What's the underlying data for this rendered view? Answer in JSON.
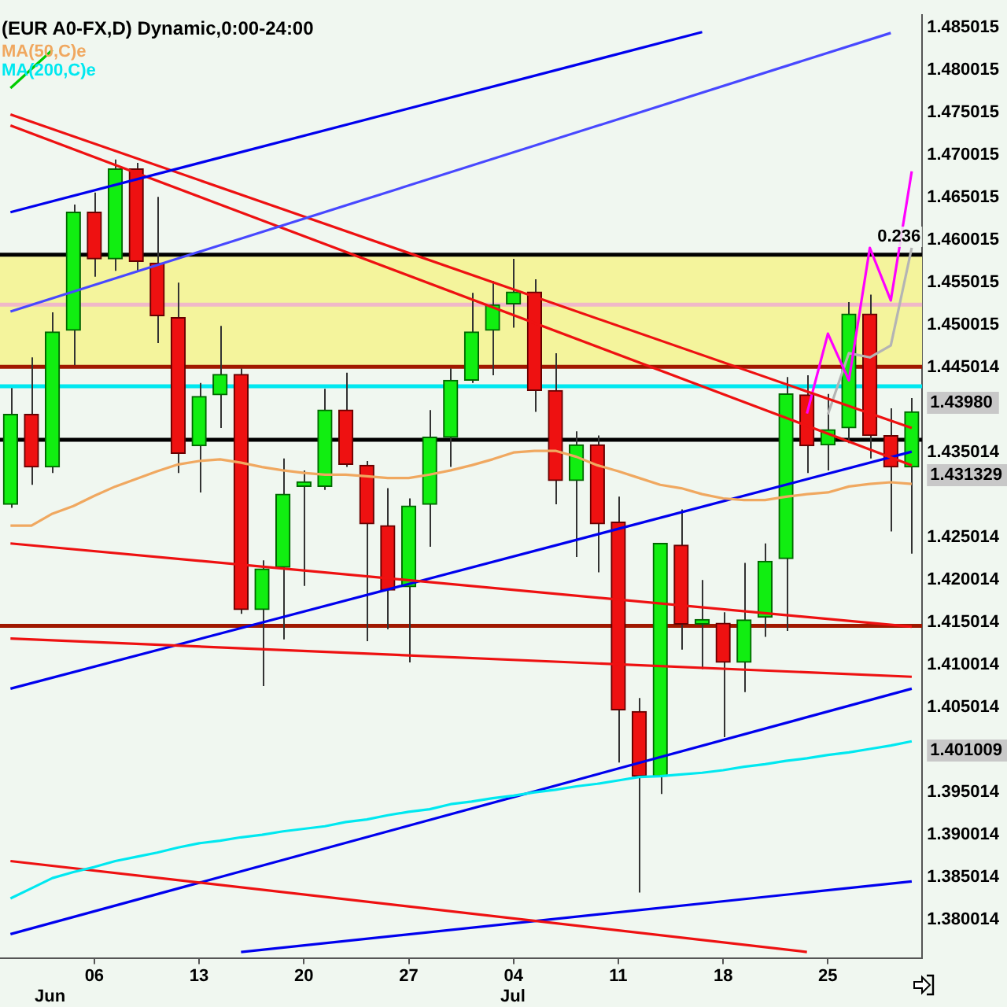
{
  "chart_data": {
    "type": "candlestick",
    "title": "(EUR A0-FX,D) Dynamic,0:00-24:00",
    "categories": [
      null,
      null,
      null,
      null,
      "06",
      null,
      null,
      null,
      null,
      "13",
      null,
      null,
      null,
      null,
      "20",
      null,
      null,
      null,
      null,
      "27",
      null,
      null,
      null,
      null,
      "04",
      null,
      null,
      null,
      null,
      "11",
      null,
      null,
      null,
      null,
      "18",
      null,
      null,
      null,
      null,
      "25",
      null,
      null,
      null,
      null
    ],
    "ohlc": [
      [
        1.4289,
        1.4426,
        1.4285,
        1.4395
      ],
      [
        1.4395,
        1.4462,
        1.4312,
        1.4333
      ],
      [
        1.4333,
        1.4515,
        1.4326,
        1.4492
      ],
      [
        1.4494,
        1.4642,
        1.4453,
        1.4633
      ],
      [
        1.4633,
        1.4656,
        1.4557,
        1.4578
      ],
      [
        1.4578,
        1.4695,
        1.4564,
        1.4684
      ],
      [
        1.4684,
        1.4691,
        1.4564,
        1.4575
      ],
      [
        1.4573,
        1.4651,
        1.4479,
        1.4511
      ],
      [
        1.4509,
        1.455,
        1.4326,
        1.4349
      ],
      [
        1.4358,
        1.4432,
        1.4303,
        1.4416
      ],
      [
        1.4418,
        1.4499,
        1.4379,
        1.4442
      ],
      [
        1.4442,
        1.4449,
        1.416,
        1.4165
      ],
      [
        1.4165,
        1.4223,
        1.4075,
        1.4213
      ],
      [
        1.4215,
        1.4343,
        1.413,
        1.4301
      ],
      [
        1.431,
        1.4329,
        1.4193,
        1.4312
      ],
      [
        1.431,
        1.4425,
        1.4306,
        1.44
      ],
      [
        1.44,
        1.4444,
        1.4333,
        1.4336
      ],
      [
        1.4335,
        1.434,
        1.4128,
        1.4266
      ],
      [
        1.4264,
        1.4308,
        1.4142,
        1.4188
      ],
      [
        1.4192,
        1.4296,
        1.4103,
        1.4287
      ],
      [
        1.4289,
        1.44,
        1.4239,
        1.4368
      ],
      [
        1.4368,
        1.4449,
        1.4333,
        1.4435
      ],
      [
        1.4435,
        1.4538,
        1.4432,
        1.4492
      ],
      [
        1.4494,
        1.4552,
        1.4441,
        1.4524
      ],
      [
        1.4525,
        1.4578,
        1.4497,
        1.4539
      ],
      [
        1.4539,
        1.4554,
        1.4398,
        1.4423
      ],
      [
        1.4423,
        1.4467,
        1.4289,
        1.4317
      ],
      [
        1.4317,
        1.4375,
        1.4227,
        1.4359
      ],
      [
        1.4359,
        1.437,
        1.4209,
        1.4266
      ],
      [
        1.4268,
        1.4298,
        1.3985,
        1.4047
      ],
      [
        1.4045,
        1.4061,
        1.3832,
        1.3969
      ],
      [
        1.3969,
        1.4243,
        1.3948,
        1.4243
      ],
      [
        1.4241,
        1.4283,
        1.4118,
        1.4148
      ],
      [
        1.4148,
        1.42,
        1.4095,
        1.4149
      ],
      [
        1.4149,
        1.4162,
        1.4015,
        1.4103
      ],
      [
        1.4103,
        1.422,
        1.4068,
        1.4153
      ],
      [
        1.4156,
        1.4243,
        1.4133,
        1.4222
      ],
      [
        1.4225,
        1.4439,
        1.414,
        1.4419
      ],
      [
        1.4418,
        1.4441,
        1.4326,
        1.4358
      ],
      [
        1.4359,
        1.4419,
        1.4329,
        1.4377
      ],
      [
        1.4379,
        1.4527,
        1.4361,
        1.4513
      ],
      [
        1.4513,
        1.4536,
        1.4343,
        1.437
      ],
      [
        1.437,
        1.4402,
        1.4257,
        1.4333
      ],
      [
        1.4333,
        1.4414,
        1.4231,
        1.4398
      ]
    ],
    "series": [
      {
        "type": "line",
        "name": "MA(50,C)e",
        "color": "#f0a860",
        "values": [
          1.4264,
          1.4264,
          1.4278,
          1.4287,
          1.4299,
          1.431,
          1.4319,
          1.4328,
          1.4336,
          1.434,
          1.4342,
          1.4338,
          1.4333,
          1.4329,
          1.4326,
          1.4324,
          1.4324,
          1.4322,
          1.432,
          1.432,
          1.4324,
          1.4329,
          1.4335,
          1.4342,
          1.435,
          1.4352,
          1.4352,
          1.4345,
          1.4335,
          1.4328,
          1.432,
          1.4312,
          1.4308,
          1.4301,
          1.4296,
          1.4294,
          1.4294,
          1.4298,
          1.4301,
          1.4303,
          1.431,
          1.4313,
          1.4315,
          1.4313
        ]
      },
      {
        "type": "line",
        "name": "MA(200,C)e",
        "color": "#00e8f0",
        "values": [
          1.3825,
          1.3837,
          1.3849,
          1.3856,
          1.3862,
          1.3869,
          1.3874,
          1.3879,
          1.3885,
          1.389,
          1.3893,
          1.3897,
          1.39,
          1.3904,
          1.3907,
          1.391,
          1.3915,
          1.3918,
          1.3923,
          1.3927,
          1.393,
          1.3936,
          1.3939,
          1.3943,
          1.3946,
          1.395,
          1.3953,
          1.3957,
          1.396,
          1.3964,
          1.3968,
          1.3969,
          1.3971,
          1.3973,
          1.3976,
          1.398,
          1.3983,
          1.3987,
          1.399,
          1.3994,
          1.3997,
          1.4001,
          1.4005,
          1.401
        ]
      },
      {
        "type": "line",
        "color": "#0000ee",
        "values": [
          1.4633,
          null,
          null,
          null,
          null,
          null,
          null,
          null,
          null,
          null,
          null,
          null,
          null,
          null,
          null,
          null,
          null,
          null,
          null,
          null,
          null,
          null,
          null,
          null,
          null,
          null,
          null,
          null,
          null,
          null,
          null,
          null,
          null,
          1.4845,
          null,
          null,
          null,
          null,
          null,
          null,
          null,
          null,
          null,
          null
        ]
      },
      {
        "type": "line",
        "color": "#4848ff",
        "values": [
          1.4516,
          null,
          null,
          null,
          null,
          null,
          null,
          null,
          null,
          null,
          null,
          null,
          null,
          null,
          null,
          null,
          null,
          null,
          null,
          null,
          null,
          null,
          null,
          null,
          null,
          null,
          null,
          null,
          null,
          null,
          null,
          null,
          null,
          null,
          null,
          null,
          null,
          null,
          null,
          null,
          null,
          null,
          1.4844,
          null
        ]
      },
      {
        "type": "line",
        "color": "#00cc00",
        "values": [
          1.4779,
          null,
          1.4824,
          null,
          null,
          null,
          null,
          null,
          null,
          null,
          null,
          null,
          null,
          null,
          null,
          null,
          null,
          null,
          null,
          null,
          null,
          null,
          null,
          null,
          null,
          null,
          null,
          null,
          null,
          null,
          null,
          null,
          null,
          null,
          null,
          null,
          null,
          null,
          null,
          null,
          null,
          null,
          null,
          null
        ]
      },
      {
        "type": "line",
        "color": "#ee1111",
        "values": [
          1.4748,
          null,
          null,
          null,
          null,
          null,
          null,
          null,
          null,
          null,
          null,
          null,
          null,
          null,
          null,
          null,
          null,
          null,
          null,
          null,
          null,
          null,
          null,
          null,
          null,
          null,
          null,
          null,
          null,
          null,
          null,
          null,
          null,
          null,
          null,
          null,
          null,
          null,
          null,
          null,
          null,
          null,
          null,
          1.4379
        ]
      },
      {
        "type": "line",
        "color": "#ee1111",
        "values": [
          1.4735,
          null,
          null,
          null,
          null,
          null,
          null,
          null,
          null,
          null,
          null,
          null,
          null,
          null,
          null,
          null,
          null,
          null,
          null,
          null,
          null,
          null,
          null,
          null,
          null,
          null,
          null,
          null,
          null,
          null,
          null,
          null,
          null,
          null,
          null,
          null,
          null,
          null,
          null,
          null,
          null,
          null,
          null,
          1.4335
        ]
      },
      {
        "type": "line",
        "color": "#ee1111",
        "values": [
          1.4243,
          null,
          null,
          null,
          null,
          null,
          null,
          null,
          null,
          null,
          null,
          null,
          null,
          null,
          null,
          null,
          null,
          null,
          null,
          null,
          null,
          null,
          null,
          null,
          null,
          null,
          null,
          null,
          null,
          null,
          null,
          null,
          null,
          null,
          null,
          null,
          null,
          null,
          null,
          null,
          null,
          null,
          null,
          1.4145
        ]
      },
      {
        "type": "line",
        "color": "#ee1111",
        "values": [
          1.4131,
          null,
          null,
          null,
          null,
          null,
          null,
          null,
          null,
          null,
          null,
          null,
          null,
          null,
          null,
          null,
          null,
          null,
          null,
          null,
          null,
          null,
          null,
          null,
          null,
          null,
          null,
          null,
          null,
          null,
          null,
          null,
          null,
          null,
          null,
          null,
          null,
          null,
          null,
          null,
          null,
          null,
          null,
          1.4086
        ]
      },
      {
        "type": "line",
        "color": "#ee1111",
        "values": [
          1.3869,
          null,
          null,
          null,
          null,
          null,
          null,
          null,
          null,
          null,
          null,
          null,
          null,
          null,
          null,
          null,
          null,
          null,
          null,
          null,
          null,
          null,
          null,
          null,
          null,
          null,
          null,
          null,
          null,
          null,
          null,
          null,
          null,
          null,
          null,
          null,
          null,
          null,
          1.3762,
          null,
          null,
          null,
          null,
          null
        ]
      },
      {
        "type": "line",
        "color": "#0000ee",
        "values": [
          1.4072,
          null,
          null,
          null,
          null,
          null,
          null,
          null,
          null,
          null,
          null,
          null,
          null,
          null,
          null,
          null,
          null,
          null,
          null,
          null,
          null,
          null,
          null,
          null,
          null,
          null,
          null,
          null,
          null,
          null,
          null,
          null,
          null,
          null,
          null,
          null,
          null,
          null,
          null,
          null,
          null,
          null,
          null,
          1.4351
        ]
      },
      {
        "type": "line",
        "color": "#0000ee",
        "values": [
          1.3783,
          null,
          null,
          null,
          null,
          null,
          null,
          null,
          null,
          null,
          null,
          null,
          null,
          null,
          null,
          null,
          null,
          null,
          null,
          null,
          null,
          null,
          null,
          null,
          null,
          null,
          null,
          null,
          null,
          null,
          null,
          null,
          null,
          null,
          null,
          null,
          null,
          null,
          null,
          null,
          null,
          null,
          null,
          1.4072
        ]
      },
      {
        "type": "line",
        "color": "#0000ee",
        "values": [
          null,
          null,
          null,
          null,
          null,
          null,
          null,
          null,
          null,
          null,
          null,
          1.3762,
          null,
          null,
          null,
          null,
          null,
          null,
          null,
          null,
          null,
          null,
          null,
          null,
          null,
          null,
          null,
          null,
          null,
          null,
          null,
          null,
          null,
          null,
          null,
          null,
          null,
          null,
          null,
          null,
          null,
          null,
          null,
          1.3845
        ]
      },
      {
        "type": "line",
        "color": "#ff00ff",
        "values": [
          null,
          null,
          null,
          null,
          null,
          null,
          null,
          null,
          null,
          null,
          null,
          null,
          null,
          null,
          null,
          null,
          null,
          null,
          null,
          null,
          null,
          null,
          null,
          null,
          null,
          null,
          null,
          null,
          null,
          null,
          null,
          null,
          null,
          null,
          null,
          null,
          null,
          null,
          1.4396,
          1.449,
          1.4435,
          1.4591,
          1.4529,
          1.4681
        ]
      },
      {
        "type": "line",
        "color": "#b4b4b4",
        "values": [
          null,
          null,
          null,
          null,
          null,
          null,
          null,
          null,
          null,
          null,
          null,
          null,
          null,
          null,
          null,
          null,
          null,
          null,
          null,
          null,
          null,
          null,
          null,
          null,
          null,
          null,
          null,
          null,
          null,
          null,
          null,
          null,
          null,
          null,
          null,
          null,
          null,
          null,
          null,
          1.4395,
          1.4467,
          1.4462,
          1.4476,
          1.4591
        ]
      }
    ],
    "bands": [
      {
        "axis": "y",
        "from": 1.4451,
        "to": 1.4583,
        "color": "#f4f49c"
      }
    ],
    "ref_lines": [
      {
        "axis": "y",
        "value": 1.4583,
        "color": "#000000"
      },
      {
        "axis": "y",
        "value": 1.4365,
        "color": "#000000"
      },
      {
        "axis": "y",
        "value": 1.4524,
        "color": "#f0b8c8"
      },
      {
        "axis": "y",
        "value": 1.4451,
        "color": "#a01800"
      },
      {
        "axis": "y",
        "value": 1.4428,
        "color": "#00e8f0"
      },
      {
        "axis": "y",
        "value": 1.4146,
        "color": "#a01800"
      }
    ],
    "annotations": [
      "1.43980",
      "1.431329",
      "1.401009",
      "Jun",
      "Jul",
      "0.236"
    ],
    "ylim": [
      1.3755,
      1.4865
    ],
    "yticks": [
      1.485015,
      1.480015,
      1.475015,
      1.470015,
      1.465015,
      1.460015,
      1.455015,
      1.450015,
      1.445014,
      1.435014,
      1.425014,
      1.420014,
      1.415014,
      1.410014,
      1.405014,
      1.395014,
      1.390014,
      1.385014,
      1.380014
    ],
    "legend": "top left",
    "grid": false
  }
}
